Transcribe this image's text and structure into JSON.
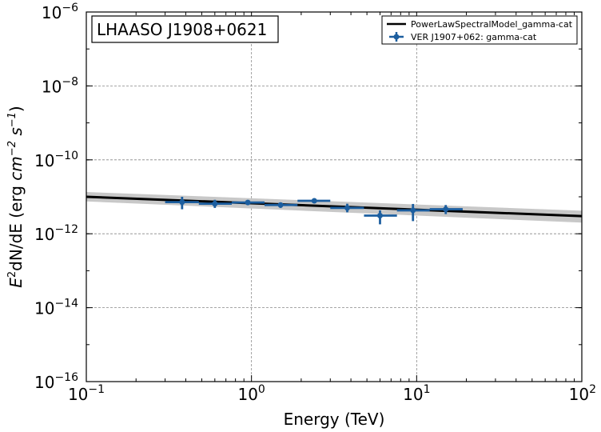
{
  "chart_data": {
    "type": "scatter",
    "title": "",
    "annotation": "LHAASO J1908+0621",
    "xlabel": "Energy (TeV)",
    "ylabel": {
      "base": "E",
      "sup": "2",
      "rest": "dN/dE (erg ",
      "unit1": "cm",
      "exp1": "−2",
      "unit2": "s",
      "exp2": "−1",
      "close": ")"
    },
    "xscale": "log",
    "yscale": "log",
    "xlim": [
      0.1,
      100
    ],
    "ylim": [
      1e-16,
      1e-06
    ],
    "grid": true,
    "legend_position": "top-right",
    "x_ticks": [
      {
        "value": 0.1,
        "base": "10",
        "exp": "−1"
      },
      {
        "value": 1,
        "base": "10",
        "exp": "0"
      },
      {
        "value": 10,
        "base": "10",
        "exp": "1"
      },
      {
        "value": 100,
        "base": "10",
        "exp": "2"
      }
    ],
    "y_ticks": [
      {
        "value": 1e-16,
        "base": "10",
        "exp": "−16"
      },
      {
        "value": 1e-14,
        "base": "10",
        "exp": "−14"
      },
      {
        "value": 1e-12,
        "base": "10",
        "exp": "−12"
      },
      {
        "value": 1e-10,
        "base": "10",
        "exp": "−10"
      },
      {
        "value": 1e-08,
        "base": "10",
        "exp": "−8"
      },
      {
        "value": 1e-06,
        "base": "10",
        "exp": "−6"
      }
    ],
    "series": [
      {
        "name": "PowerLawSpectralModel_gamma-cat",
        "kind": "line",
        "color": "#000000",
        "band_color": "#c8c8c8",
        "x": [
          0.1,
          100
        ],
        "y": [
          1e-11,
          3e-12
        ],
        "y_band_low": [
          7.5e-12,
          2e-12
        ],
        "y_band_high": [
          1.35e-11,
          4.2e-12
        ]
      },
      {
        "name": "VER J1907+062: gamma-cat",
        "kind": "errorbar",
        "color": "#1c5e9f",
        "points": [
          {
            "x": 0.38,
            "y": 7.2e-12,
            "xlo": 0.3,
            "xhi": 0.48,
            "ylo": 4.6e-12,
            "yhi": 1e-11
          },
          {
            "x": 0.6,
            "y": 6.5e-12,
            "xlo": 0.48,
            "xhi": 0.76,
            "ylo": 5e-12,
            "yhi": 8.3e-12
          },
          {
            "x": 0.95,
            "y": 7e-12,
            "xlo": 0.76,
            "xhi": 1.2,
            "ylo": 6e-12,
            "yhi": 8.2e-12
          },
          {
            "x": 1.5,
            "y": 6e-12,
            "xlo": 1.2,
            "xhi": 1.9,
            "ylo": 5e-12,
            "yhi": 7e-12
          },
          {
            "x": 2.4,
            "y": 7.8e-12,
            "xlo": 1.9,
            "xhi": 3.0,
            "ylo": 7e-12,
            "yhi": 8.6e-12
          },
          {
            "x": 3.8,
            "y": 5e-12,
            "xlo": 3.0,
            "xhi": 4.8,
            "ylo": 3.8e-12,
            "yhi": 6.5e-12
          },
          {
            "x": 6.0,
            "y": 3.1e-12,
            "xlo": 4.8,
            "xhi": 7.6,
            "ylo": 1.8e-12,
            "yhi": 4.3e-12
          },
          {
            "x": 9.5,
            "y": 4.3e-12,
            "xlo": 7.6,
            "xhi": 12.0,
            "ylo": 2.2e-12,
            "yhi": 6.4e-12
          },
          {
            "x": 15.0,
            "y": 4.6e-12,
            "xlo": 12.0,
            "xhi": 19.0,
            "ylo": 3.4e-12,
            "yhi": 6e-12
          }
        ]
      }
    ]
  }
}
